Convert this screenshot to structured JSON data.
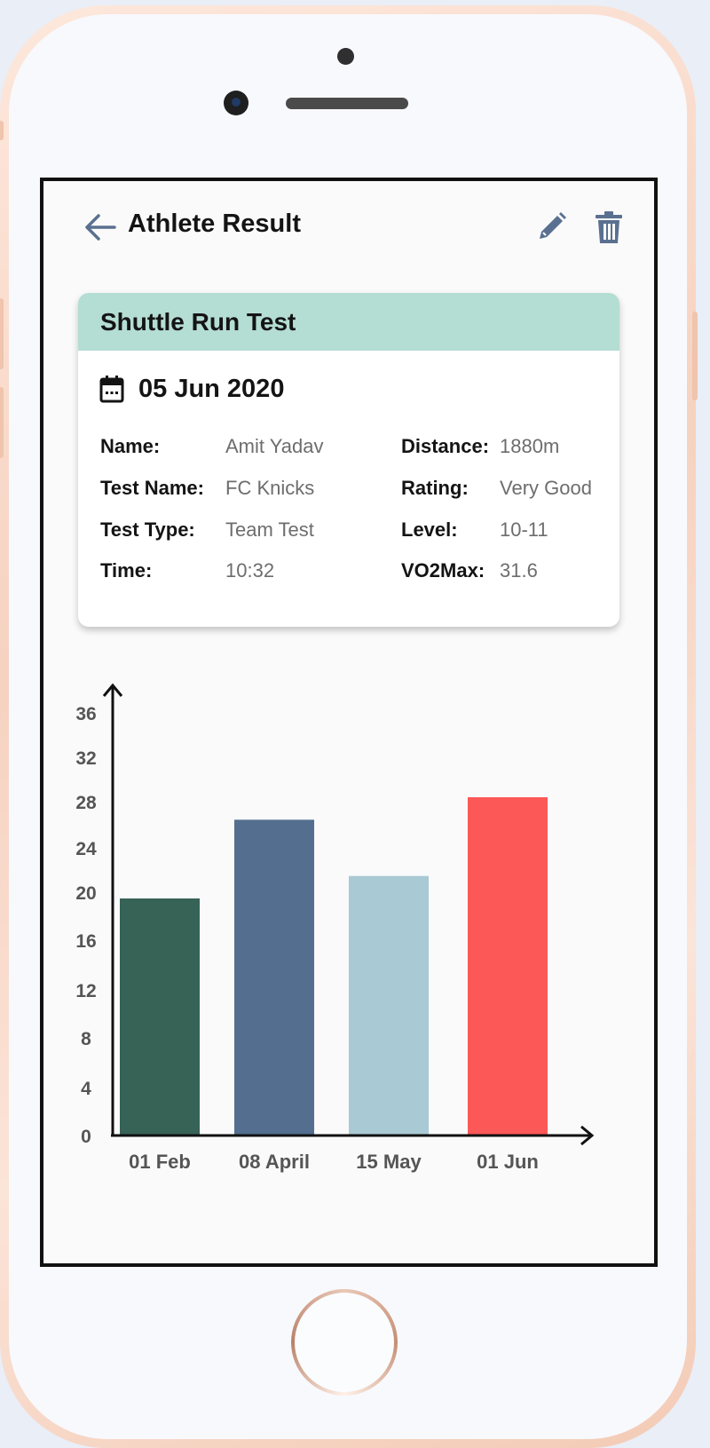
{
  "header": {
    "title": "Athlete Result"
  },
  "card": {
    "title": "Shuttle Run Test",
    "date": "05 Jun 2020",
    "left_fields": [
      {
        "label": "Name:",
        "value": "Amit Yadav"
      },
      {
        "label": "Test Name:",
        "value": "FC Knicks"
      },
      {
        "label": "Test Type:",
        "value": "Team Test"
      },
      {
        "label": "Time:",
        "value": "10:32"
      }
    ],
    "right_fields": [
      {
        "label": "Distance:",
        "value": "1880m"
      },
      {
        "label": "Rating:",
        "value": "Very Good"
      },
      {
        "label": "Level:",
        "value": "10-11"
      },
      {
        "label": "VO2Max:",
        "value": "31.6"
      }
    ]
  },
  "colors": {
    "accent": "#5a7090",
    "card_header": "#b4ddd4"
  },
  "chart_data": {
    "type": "bar",
    "categories": [
      "01 Feb",
      "08 April",
      "15 May",
      "01 Jun"
    ],
    "values": [
      21,
      28,
      23,
      30
    ],
    "colors": [
      "#366356",
      "#536e8f",
      "#a9c9d4",
      "#fd5858"
    ],
    "yticks": [
      0,
      4,
      8,
      12,
      16,
      20,
      24,
      28,
      32,
      36
    ],
    "ylim": [
      0,
      39
    ]
  }
}
